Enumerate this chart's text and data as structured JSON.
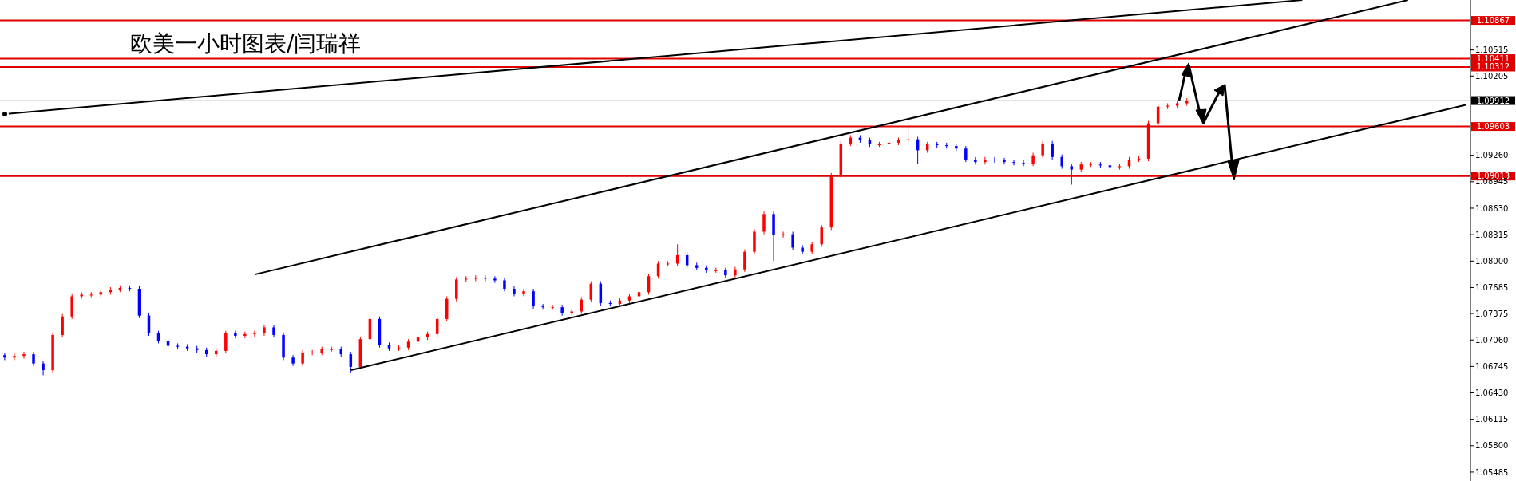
{
  "chart_data": {
    "type": "candlestick",
    "title": "欧美一小时图表/闫瑞祥",
    "categories": [
      null,
      null,
      null,
      null,
      null,
      null,
      null,
      null,
      null,
      null,
      null,
      null,
      null,
      null,
      null,
      null,
      null,
      null,
      null,
      null,
      null,
      null,
      null,
      null,
      null,
      null,
      null,
      null,
      null,
      null,
      null,
      null,
      null,
      null,
      null,
      null,
      null,
      null,
      null,
      null,
      null,
      null,
      null,
      null,
      null,
      null,
      null,
      null,
      null,
      null,
      null,
      null,
      null,
      null,
      null,
      null,
      null,
      null,
      null,
      null,
      null,
      null,
      null,
      null,
      null,
      null,
      null,
      null,
      null,
      null,
      null,
      null,
      null,
      null,
      null,
      null,
      null,
      null,
      null,
      null,
      null,
      null,
      null,
      null,
      null,
      null,
      null,
      null,
      null,
      null,
      null,
      null,
      null,
      null,
      null,
      null,
      null,
      null,
      null,
      null,
      null,
      null,
      null,
      null,
      null,
      null,
      null,
      null,
      null,
      null,
      null,
      null,
      null,
      null,
      null,
      null,
      null,
      null,
      null,
      null,
      null,
      null,
      null,
      null,
      null,
      null,
      null,
      null,
      null,
      null,
      null,
      null,
      null,
      null,
      null,
      null,
      null,
      null,
      null,
      null,
      null,
      null,
      null,
      null,
      null,
      null,
      null,
      null,
      null,
      null,
      null,
      null,
      null
    ],
    "series": [
      {
        "ohlc": [
          [
            1.0688,
            1.0691,
            1.0682,
            1.0685
          ],
          [
            1.0685,
            1.069,
            1.0682,
            1.0687
          ],
          [
            1.0687,
            1.0692,
            1.0684,
            1.0689
          ],
          [
            1.0689,
            1.0692,
            1.0675,
            1.0678
          ],
          [
            1.0678,
            1.0681,
            1.0664,
            1.067
          ],
          [
            1.067,
            1.0715,
            1.0667,
            1.0712
          ],
          [
            1.0712,
            1.0737,
            1.0709,
            1.0734
          ],
          [
            1.0734,
            1.0761,
            1.0731,
            1.0758
          ],
          [
            1.0758,
            1.0763,
            1.0755,
            1.076
          ],
          [
            1.076,
            1.0763,
            1.0757,
            1.076
          ],
          [
            1.076,
            1.0766,
            1.0757,
            1.0763
          ],
          [
            1.0763,
            1.0769,
            1.076,
            1.0766
          ],
          [
            1.0766,
            1.0771,
            1.0763,
            1.0768
          ],
          [
            1.0768,
            1.0771,
            1.0764,
            1.0767
          ],
          [
            1.0767,
            1.077,
            1.0732,
            1.0735
          ],
          [
            1.0735,
            1.0738,
            1.0711,
            1.0714
          ],
          [
            1.0714,
            1.0717,
            1.0702,
            1.0705
          ],
          [
            1.0705,
            1.0708,
            1.0696,
            1.0699
          ],
          [
            1.0699,
            1.0702,
            1.0695,
            1.0698
          ],
          [
            1.0698,
            1.0701,
            1.0693,
            1.0696
          ],
          [
            1.0696,
            1.0699,
            1.0691,
            1.0694
          ],
          [
            1.0694,
            1.0697,
            1.0686,
            1.0689
          ],
          [
            1.0689,
            1.0696,
            1.0686,
            1.0693
          ],
          [
            1.0693,
            1.0717,
            1.069,
            1.0714
          ],
          [
            1.0714,
            1.0717,
            1.0708,
            1.0711
          ],
          [
            1.0711,
            1.0716,
            1.0708,
            1.0713
          ],
          [
            1.0713,
            1.0717,
            1.071,
            1.0714
          ],
          [
            1.0714,
            1.0724,
            1.0711,
            1.0721
          ],
          [
            1.0721,
            1.0724,
            1.0709,
            1.0712
          ],
          [
            1.0712,
            1.0715,
            1.0682,
            1.0685
          ],
          [
            1.0685,
            1.0688,
            1.0675,
            1.0678
          ],
          [
            1.0678,
            1.0694,
            1.0675,
            1.0691
          ],
          [
            1.0691,
            1.0694,
            1.0688,
            1.0691
          ],
          [
            1.0691,
            1.0698,
            1.0688,
            1.0695
          ],
          [
            1.0695,
            1.0698,
            1.0692,
            1.0695
          ],
          [
            1.0695,
            1.0698,
            1.0686,
            1.0689
          ],
          [
            1.0689,
            1.0692,
            1.0667,
            1.0674
          ],
          [
            1.0674,
            1.071,
            1.0671,
            1.0707
          ],
          [
            1.0707,
            1.0734,
            1.0704,
            1.0731
          ],
          [
            1.0731,
            1.0734,
            1.0697,
            1.07
          ],
          [
            1.07,
            1.0703,
            1.0693,
            1.0696
          ],
          [
            1.0696,
            1.07,
            1.0693,
            1.0697
          ],
          [
            1.0697,
            1.0707,
            1.0694,
            1.0704
          ],
          [
            1.0704,
            1.0712,
            1.0701,
            1.0709
          ],
          [
            1.0709,
            1.0716,
            1.0706,
            1.0713
          ],
          [
            1.0713,
            1.0734,
            1.071,
            1.0731
          ],
          [
            1.0731,
            1.0758,
            1.0728,
            1.0755
          ],
          [
            1.0755,
            1.0781,
            1.0752,
            1.0778
          ],
          [
            1.0778,
            1.0782,
            1.0775,
            1.0779
          ],
          [
            1.0779,
            1.0783,
            1.0776,
            1.078
          ],
          [
            1.078,
            1.0783,
            1.0776,
            1.0779
          ],
          [
            1.0779,
            1.0782,
            1.0774,
            1.0777
          ],
          [
            1.0777,
            1.078,
            1.0764,
            1.0767
          ],
          [
            1.0767,
            1.077,
            1.0758,
            1.0761
          ],
          [
            1.0761,
            1.0767,
            1.0758,
            1.0764
          ],
          [
            1.0764,
            1.0767,
            1.0743,
            1.0746
          ],
          [
            1.0746,
            1.0749,
            1.0742,
            1.0745
          ],
          [
            1.0745,
            1.0748,
            1.0742,
            1.0745
          ],
          [
            1.0745,
            1.0748,
            1.0735,
            1.0738
          ],
          [
            1.0738,
            1.0743,
            1.0735,
            1.074
          ],
          [
            1.074,
            1.0757,
            1.0737,
            1.0754
          ],
          [
            1.0754,
            1.0776,
            1.0751,
            1.0773
          ],
          [
            1.0773,
            1.0776,
            1.0747,
            1.075
          ],
          [
            1.075,
            1.0753,
            1.0746,
            1.0749
          ],
          [
            1.0749,
            1.0756,
            1.0746,
            1.0753
          ],
          [
            1.0753,
            1.0761,
            1.075,
            1.0758
          ],
          [
            1.0758,
            1.0766,
            1.0755,
            1.0763
          ],
          [
            1.0763,
            1.0785,
            1.076,
            1.0782
          ],
          [
            1.0782,
            1.08,
            1.0779,
            1.0797
          ],
          [
            1.0797,
            1.08,
            1.0794,
            1.0797
          ],
          [
            1.0797,
            1.082,
            1.0794,
            1.0807
          ],
          [
            1.0807,
            1.081,
            1.0792,
            1.0795
          ],
          [
            1.0795,
            1.0798,
            1.0789,
            1.0792
          ],
          [
            1.0792,
            1.0795,
            1.0786,
            1.0789
          ],
          [
            1.0789,
            1.0792,
            1.0786,
            1.0789
          ],
          [
            1.0789,
            1.0792,
            1.078,
            1.0783
          ],
          [
            1.0783,
            1.0793,
            1.078,
            1.079
          ],
          [
            1.079,
            1.0814,
            1.0787,
            1.0811
          ],
          [
            1.0811,
            1.0838,
            1.0808,
            1.0835
          ],
          [
            1.0835,
            1.0859,
            1.0832,
            1.0856
          ],
          [
            1.0856,
            1.0859,
            1.08,
            1.0831
          ],
          [
            1.0831,
            1.0835,
            1.0828,
            1.0832
          ],
          [
            1.0832,
            1.0835,
            1.0813,
            1.0816
          ],
          [
            1.0816,
            1.0819,
            1.0808,
            1.0811
          ],
          [
            1.0811,
            1.0823,
            1.0808,
            1.082
          ],
          [
            1.082,
            1.0843,
            1.0817,
            1.084
          ],
          [
            1.084,
            1.0905,
            1.0837,
            1.0902
          ],
          [
            1.0902,
            1.0943,
            1.0899,
            1.094
          ],
          [
            1.094,
            1.095,
            1.0937,
            1.0947
          ],
          [
            1.0947,
            1.095,
            1.0941,
            1.0944
          ],
          [
            1.0944,
            1.0947,
            1.0936,
            1.0939
          ],
          [
            1.0939,
            1.0942,
            1.0936,
            1.0939
          ],
          [
            1.0939,
            1.0944,
            1.0936,
            1.0941
          ],
          [
            1.0941,
            1.0947,
            1.0938,
            1.0944
          ],
          [
            1.0944,
            1.0965,
            1.0941,
            1.0945
          ],
          [
            1.0945,
            1.0948,
            1.0916,
            1.0932
          ],
          [
            1.0932,
            1.0942,
            1.0929,
            1.0939
          ],
          [
            1.0939,
            1.0942,
            1.0935,
            1.0938
          ],
          [
            1.0938,
            1.0941,
            1.0934,
            1.0937
          ],
          [
            1.0937,
            1.094,
            1.0931,
            1.0934
          ],
          [
            1.0934,
            1.0937,
            1.0918,
            1.0921
          ],
          [
            1.0921,
            1.0924,
            1.0915,
            1.0918
          ],
          [
            1.0918,
            1.0924,
            1.0915,
            1.0921
          ],
          [
            1.0921,
            1.0924,
            1.0917,
            1.092
          ],
          [
            1.092,
            1.0923,
            1.0915,
            1.0918
          ],
          [
            1.0918,
            1.0921,
            1.0914,
            1.0917
          ],
          [
            1.0917,
            1.092,
            1.0913,
            1.0916
          ],
          [
            1.0916,
            1.0929,
            1.0913,
            1.0926
          ],
          [
            1.0926,
            1.0943,
            1.0923,
            1.094
          ],
          [
            1.094,
            1.0943,
            1.0921,
            1.0924
          ],
          [
            1.0924,
            1.0927,
            1.091,
            1.0913
          ],
          [
            1.0913,
            1.0916,
            1.0891,
            1.0909
          ],
          [
            1.0909,
            1.0918,
            1.0906,
            1.0915
          ],
          [
            1.0915,
            1.0918,
            1.0912,
            1.0915
          ],
          [
            1.0915,
            1.0918,
            1.0911,
            1.0914
          ],
          [
            1.0914,
            1.0917,
            1.0909,
            1.0912
          ],
          [
            1.0912,
            1.0916,
            1.0909,
            1.0913
          ],
          [
            1.0913,
            1.0924,
            1.091,
            1.0921
          ],
          [
            1.0921,
            1.0925,
            1.0918,
            1.0922
          ],
          [
            1.0922,
            1.0967,
            1.0919,
            1.0964
          ],
          [
            1.0964,
            1.0987,
            1.0961,
            1.0984
          ],
          [
            1.0984,
            1.0988,
            1.0981,
            1.0985
          ],
          [
            1.0985,
            1.0991,
            1.0982,
            1.0988
          ],
          [
            1.0988,
            1.0994,
            1.0985,
            1.0991
          ],
          null,
          null,
          null,
          null,
          null,
          null,
          null,
          null,
          null,
          null,
          null,
          null,
          null,
          null,
          null,
          null,
          null,
          null,
          null,
          null,
          null,
          null,
          null,
          null,
          null,
          null,
          null,
          null,
          null
        ],
        "colors": [
          "#0000ff",
          "#ff0000",
          "#ff0000",
          "#0000ff",
          "#0000ff",
          "#ff0000",
          "#ff0000",
          "#ff0000",
          "#ff0000",
          "#ff0000",
          "#ff0000",
          "#ff0000",
          "#ff0000",
          "#0000ff",
          "#0000ff",
          "#0000ff",
          "#0000ff",
          "#0000ff",
          "#0000ff",
          "#0000ff",
          "#0000ff",
          "#0000ff",
          "#ff0000",
          "#ff0000",
          "#0000ff",
          "#ff0000",
          "#ff0000",
          "#ff0000",
          "#0000ff",
          "#0000ff",
          "#0000ff",
          "#ff0000",
          "#ff0000",
          "#ff0000",
          "#ff0000",
          "#0000ff",
          "#0000ff",
          "#ff0000",
          "#ff0000",
          "#0000ff",
          "#0000ff",
          "#ff0000",
          "#ff0000",
          "#ff0000",
          "#ff0000",
          "#ff0000",
          "#ff0000",
          "#ff0000",
          "#ff0000",
          "#ff0000",
          "#0000ff",
          "#0000ff",
          "#0000ff",
          "#0000ff",
          "#ff0000",
          "#0000ff",
          "#0000ff",
          "#ff0000",
          "#0000ff",
          "#ff0000",
          "#ff0000",
          "#ff0000",
          "#0000ff",
          "#0000ff",
          "#ff0000",
          "#ff0000",
          "#ff0000",
          "#ff0000",
          "#ff0000",
          "#ff0000",
          "#ff0000",
          "#0000ff",
          "#0000ff",
          "#0000ff",
          "#ff0000",
          "#0000ff",
          "#ff0000",
          "#ff0000",
          "#ff0000",
          "#ff0000",
          "#0000ff",
          "#ff0000",
          "#0000ff",
          "#0000ff",
          "#ff0000",
          "#ff0000",
          "#ff0000",
          "#ff0000",
          "#ff0000",
          "#0000ff",
          "#0000ff",
          "#ff0000",
          "#ff0000",
          "#ff0000",
          "#ff0000",
          "#0000ff",
          "#ff0000",
          "#0000ff",
          "#0000ff",
          "#0000ff",
          "#0000ff",
          "#0000ff",
          "#ff0000",
          "#0000ff",
          "#0000ff",
          "#0000ff",
          "#0000ff",
          "#ff0000",
          "#ff0000",
          "#0000ff",
          "#0000ff",
          "#0000ff",
          "#ff0000",
          "#ff0000",
          "#0000ff",
          "#0000ff",
          "#ff0000",
          "#ff0000",
          "#ff0000",
          "#ff0000",
          "#ff0000",
          "#ff0000",
          "#ff0000",
          "#ff0000",
          null,
          null,
          null,
          null,
          null,
          null,
          null,
          null,
          null,
          null,
          null,
          null,
          null,
          null,
          null,
          null,
          null,
          null,
          null,
          null,
          null,
          null,
          null,
          null,
          null,
          null,
          null,
          null,
          null
        ]
      },
      {
        "type": "line",
        "color": "#000000",
        "values": [
          1.0975,
          null,
          null,
          null,
          null,
          null,
          null,
          null,
          null,
          null,
          null,
          null,
          null,
          null,
          null,
          null,
          null,
          null,
          null,
          null,
          null,
          null,
          null,
          null,
          null,
          null,
          null,
          null,
          null,
          null,
          null,
          null,
          null,
          null,
          null,
          null,
          null,
          null,
          null,
          null,
          null,
          null,
          null,
          null,
          null,
          null,
          null,
          null,
          null,
          null,
          null,
          null,
          null,
          null,
          null,
          null,
          null,
          null,
          null,
          null,
          null,
          null,
          null,
          null,
          null,
          null,
          null,
          null,
          null,
          null,
          null,
          null,
          null,
          null,
          null,
          null,
          null,
          null,
          null,
          null,
          null,
          null,
          null,
          null,
          null,
          null,
          null,
          null,
          null,
          null,
          null,
          null,
          null,
          null,
          null,
          null,
          null,
          null,
          null,
          null,
          null,
          null,
          null,
          null,
          null,
          null,
          null,
          null,
          null,
          null,
          null,
          null,
          null,
          null,
          null,
          null,
          null,
          null,
          null,
          null,
          null,
          null,
          null,
          null,
          null,
          null,
          null,
          null,
          null,
          null,
          null,
          null,
          null,
          null,
          null,
          1.1111,
          null,
          null,
          null,
          null,
          null,
          null,
          null,
          null,
          null,
          null,
          null,
          null,
          null,
          null,
          null,
          null,
          null
        ]
      },
      {
        "type": "line",
        "color": "#000000",
        "values": [
          null,
          null,
          null,
          null,
          null,
          null,
          null,
          null,
          null,
          null,
          null,
          null,
          null,
          null,
          null,
          null,
          null,
          null,
          null,
          null,
          null,
          null,
          null,
          null,
          null,
          null,
          1.0784,
          null,
          null,
          null,
          null,
          null,
          null,
          null,
          null,
          null,
          null,
          null,
          null,
          null,
          null,
          null,
          null,
          null,
          null,
          null,
          null,
          null,
          null,
          null,
          null,
          null,
          null,
          null,
          null,
          null,
          null,
          null,
          null,
          null,
          null,
          null,
          null,
          null,
          null,
          null,
          null,
          null,
          null,
          null,
          null,
          null,
          null,
          null,
          null,
          null,
          null,
          null,
          null,
          null,
          null,
          null,
          null,
          null,
          null,
          null,
          null,
          null,
          null,
          null,
          null,
          null,
          null,
          null,
          null,
          null,
          null,
          null,
          null,
          null,
          null,
          null,
          null,
          null,
          null,
          null,
          null,
          null,
          null,
          null,
          null,
          null,
          null,
          null,
          null,
          null,
          null,
          null,
          null,
          null,
          null,
          null,
          null,
          null,
          null,
          null,
          null,
          null,
          null,
          null,
          null,
          null,
          null,
          null,
          null,
          null,
          null,
          null,
          null,
          null,
          null,
          null,
          null,
          null,
          null,
          null,
          1.1111,
          null,
          null,
          null,
          null,
          null,
          null
        ]
      },
      {
        "type": "line",
        "color": "#000000",
        "values": [
          null,
          null,
          null,
          null,
          null,
          null,
          null,
          null,
          null,
          null,
          null,
          null,
          null,
          null,
          null,
          null,
          null,
          null,
          null,
          null,
          null,
          null,
          null,
          null,
          null,
          null,
          null,
          null,
          null,
          null,
          null,
          null,
          null,
          null,
          null,
          null,
          1.067,
          null,
          null,
          null,
          null,
          null,
          null,
          null,
          null,
          null,
          null,
          null,
          null,
          null,
          null,
          null,
          null,
          null,
          null,
          null,
          null,
          null,
          null,
          null,
          null,
          null,
          null,
          null,
          null,
          null,
          null,
          null,
          null,
          null,
          null,
          null,
          null,
          null,
          null,
          null,
          null,
          null,
          null,
          null,
          null,
          null,
          null,
          null,
          null,
          null,
          null,
          null,
          null,
          null,
          null,
          null,
          null,
          null,
          null,
          null,
          null,
          null,
          null,
          null,
          null,
          null,
          null,
          null,
          null,
          null,
          null,
          null,
          null,
          null,
          null,
          null,
          null,
          null,
          null,
          null,
          null,
          null,
          null,
          null,
          null,
          null,
          null,
          null,
          null,
          null,
          null,
          null,
          null,
          null,
          null,
          null,
          null,
          null,
          null,
          null,
          null,
          null,
          null,
          null,
          null,
          null,
          null,
          null,
          null,
          null,
          null,
          null,
          null,
          null,
          null,
          null,
          1.0986
        ]
      }
    ],
    "ylim": [
      1.0538,
      1.1111
    ],
    "yticks": [
      {
        "value": 1.05485,
        "label": "1.05485"
      },
      {
        "value": 1.058,
        "label": "1.05800"
      },
      {
        "value": 1.06115,
        "label": "1.06115"
      },
      {
        "value": 1.0643,
        "label": "1.06430"
      },
      {
        "value": 1.06745,
        "label": "1.06745"
      },
      {
        "value": 1.0706,
        "label": "1.07060"
      },
      {
        "value": 1.07375,
        "label": "1.07375"
      },
      {
        "value": 1.07685,
        "label": "1.07685"
      },
      {
        "value": 1.08,
        "label": "1.08000"
      },
      {
        "value": 1.08315,
        "label": "1.08315"
      },
      {
        "value": 1.0863,
        "label": "1.08630"
      },
      {
        "value": 1.08945,
        "label": "1.08945"
      },
      {
        "value": 1.0926,
        "label": "1.09260"
      },
      {
        "value": 1.10205,
        "label": "1.10205"
      },
      {
        "value": 1.10515,
        "label": "1.10515"
      }
    ],
    "ref_lines": [
      {
        "axis": "y",
        "value": 1.10867,
        "label": "1.10867",
        "color": "#e00000"
      },
      {
        "axis": "y",
        "value": 1.10411,
        "label": "1.10411",
        "color": "#e00000"
      },
      {
        "axis": "y",
        "value": 1.10312,
        "label": "1.10312",
        "color": "#e00000"
      },
      {
        "axis": "y",
        "value": 1.09912,
        "label": "1.09912",
        "color": "#c0c0c0"
      },
      {
        "axis": "y",
        "value": 1.09603,
        "label": "1.09603",
        "color": "#e00000"
      },
      {
        "axis": "y",
        "value": 1.09013,
        "label": "1.09013",
        "color": "#e00000"
      }
    ],
    "tick_labels": "y"
  }
}
